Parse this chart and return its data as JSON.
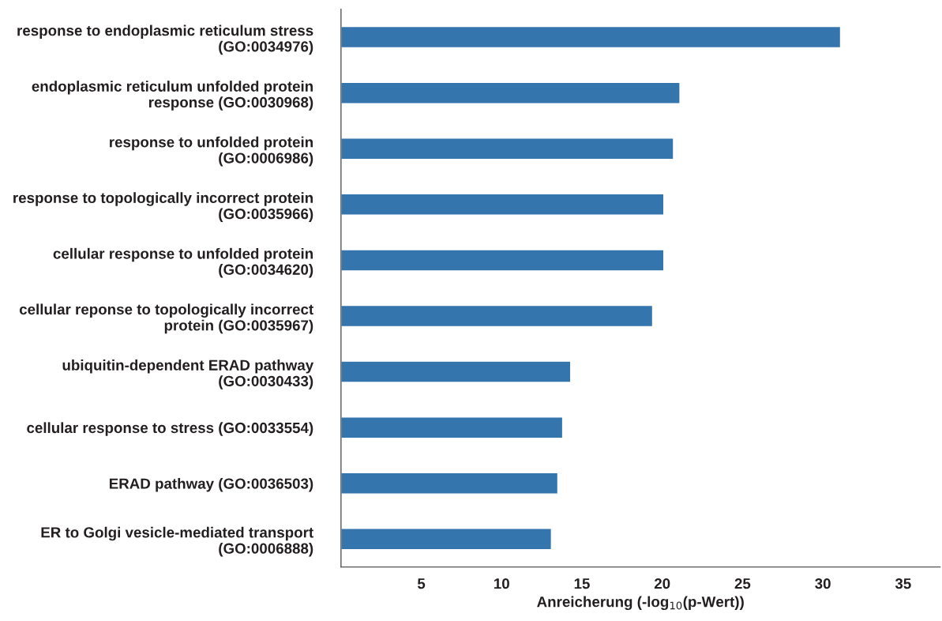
{
  "chart_data": {
    "type": "bar",
    "orientation": "horizontal",
    "categories": [
      "response to endoplasmic reticulum stress\n(GO:0034976)",
      "endoplasmic reticulum unfolded protein\nresponse (GO:0030968)",
      "response to unfolded protein\n(GO:0006986)",
      "response to topologically incorrect protein\n(GO:0035966)",
      "cellular response to unfolded protein\n(GO:0034620)",
      "cellular reponse to topologically incorrect\nprotein (GO:0035967)",
      "ubiquitin-dependent ERAD pathway\n(GO:0030433)",
      "cellular response to stress (GO:0033554)",
      "ERAD pathway (GO:0036503)",
      "ER to Golgi vesicle-mediated transport\n(GO:0006888)"
    ],
    "values": [
      31.1,
      21.1,
      20.7,
      20.1,
      20.1,
      19.4,
      14.3,
      13.8,
      13.5,
      13.1
    ],
    "color": "#3575ae",
    "xlabel": "Anreicherung (-log$_{10}$(p-Wert))",
    "xlim": [
      0,
      37.3
    ],
    "xticks": [
      5,
      10,
      15,
      20,
      25,
      30,
      35
    ],
    "grid": false,
    "legend": false
  }
}
